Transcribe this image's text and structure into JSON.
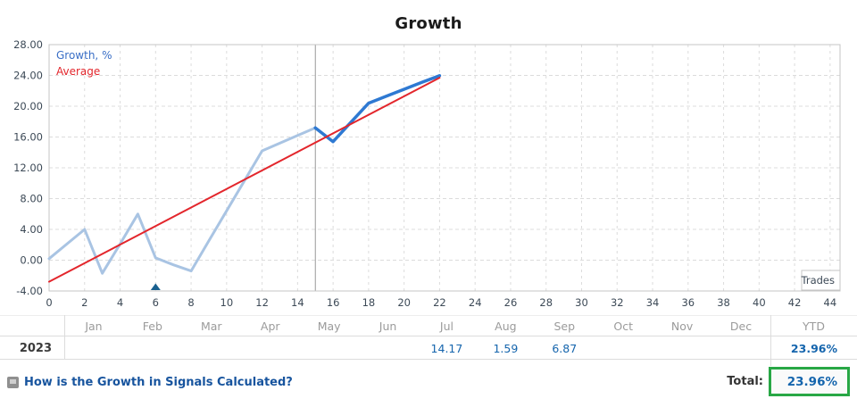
{
  "page": {
    "title": "Growth"
  },
  "chart_data": {
    "type": "line",
    "title": "Growth",
    "xlabel": "Trades",
    "ylabel": "",
    "xlim": [
      0,
      44.56
    ],
    "ylim": [
      -4,
      28
    ],
    "x_ticks": [
      0,
      2,
      4,
      6,
      8,
      10,
      12,
      14,
      16,
      18,
      20,
      22,
      24,
      26,
      28,
      30,
      32,
      34,
      36,
      38,
      40,
      42,
      44
    ],
    "y_ticks": [
      28,
      24,
      20,
      16,
      12,
      8,
      4,
      0,
      -4
    ],
    "y_tick_decimals": 2,
    "grid": "dashed",
    "grid_color": "#dcdcdc",
    "border_color": "#c5c5c5",
    "tick_label_color": "#3d4a57",
    "vline_x": 15,
    "vline_color": "#999999",
    "deposit_marker": {
      "x": 6,
      "shape": "triangle-up",
      "color": "#19608f"
    },
    "legend": {
      "position": "top-left",
      "entries": [
        {
          "label": "Growth, %",
          "color": "#3a6fc6"
        },
        {
          "label": "Average",
          "color": "#e3262c"
        }
      ]
    },
    "series": [
      {
        "name": "Growth, % (closed history)",
        "color": "#a9c4e3",
        "width": 3,
        "points": [
          [
            0,
            0.2
          ],
          [
            1,
            2.1
          ],
          [
            2,
            4.0
          ],
          [
            3,
            -1.7
          ],
          [
            4,
            2.1
          ],
          [
            5,
            6.0
          ],
          [
            6,
            0.3
          ],
          [
            7,
            -0.6
          ],
          [
            8,
            -1.4
          ],
          [
            9,
            2.5
          ],
          [
            10,
            6.4
          ],
          [
            11,
            10.3
          ],
          [
            12,
            14.2
          ],
          [
            13,
            15.2
          ],
          [
            14,
            16.2
          ],
          [
            15,
            17.2
          ]
        ]
      },
      {
        "name": "Growth, % (current)",
        "color": "#2e79d2",
        "width": 3.5,
        "points": [
          [
            15,
            17.2
          ],
          [
            16,
            15.4
          ],
          [
            17,
            17.9
          ],
          [
            18,
            20.4
          ],
          [
            19,
            21.3
          ],
          [
            20,
            22.2
          ],
          [
            21,
            23.1
          ],
          [
            22,
            23.96
          ]
        ]
      },
      {
        "name": "Average",
        "color": "#e3262c",
        "width": 2,
        "points": [
          [
            0,
            -2.8
          ],
          [
            22,
            23.7
          ]
        ]
      }
    ]
  },
  "table": {
    "year_label": "2023",
    "months": [
      "Jan",
      "Feb",
      "Mar",
      "Apr",
      "May",
      "Jun",
      "Jul",
      "Aug",
      "Sep",
      "Oct",
      "Nov",
      "Dec"
    ],
    "ytd_header": "YTD",
    "monthly_values": {
      "Jul": "14.17",
      "Aug": "1.59",
      "Sep": "6.87"
    },
    "ytd_value": "23.96%"
  },
  "footer": {
    "help_link": "How is the Growth in Signals Calculated?",
    "total_label": "Total:",
    "total_value": "23.96%",
    "total_highlight_color": "#28a745"
  }
}
